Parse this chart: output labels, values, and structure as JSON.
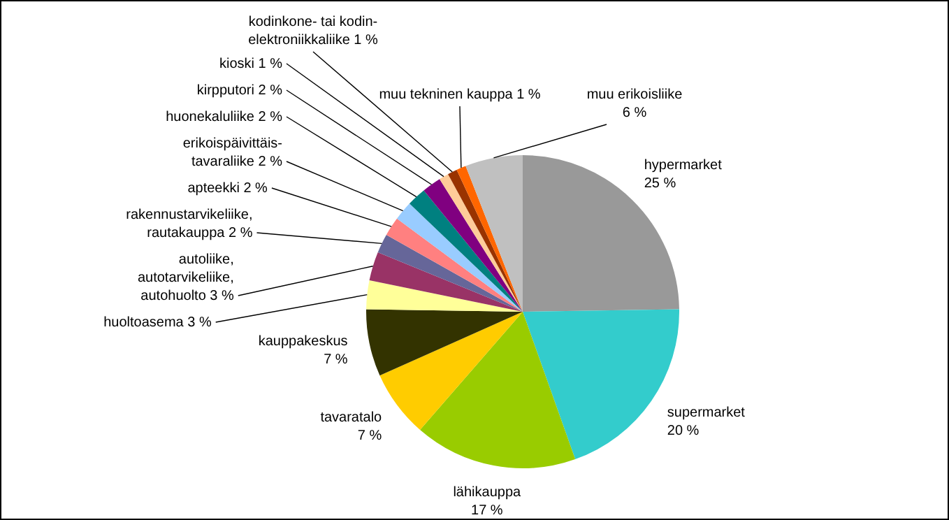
{
  "chart_data": {
    "type": "pie",
    "categories": [
      "hypermarket",
      "supermarket",
      "lähikauppa",
      "tavaratalo",
      "kauppakeskus",
      "huoltoasema",
      "autoliike,\nautotarvikeliike,\nautohuolto",
      "rakennustarvikeliike,\nrautakauppa",
      "apteekki",
      "erikoispäivittäis-\ntavaraliike",
      "huonekaluliike",
      "kirpputori",
      "kioski",
      "kodinkone- tai kodin-\nelektroniikkaliike",
      "muu tekninen kauppa",
      "muu erikoisliike"
    ],
    "values": [
      25,
      20,
      17,
      7,
      7,
      3,
      3,
      2,
      2,
      2,
      2,
      2,
      1,
      1,
      1,
      6
    ],
    "value_labels": [
      "25 %",
      "20 %",
      "17 %",
      "7 %",
      "7 %",
      "3 %",
      "3 %",
      "2 %",
      "2 %",
      "2 %",
      "2 %",
      "2 %",
      "1 %",
      "1 %",
      "1 %",
      "6 %"
    ],
    "colors": [
      "#999999",
      "#33cccc",
      "#99cc00",
      "#ffcc00",
      "#333300",
      "#ffff99",
      "#993366",
      "#666699",
      "#ff8080",
      "#99ccff",
      "#008080",
      "#800080",
      "#ffcc99",
      "#993300",
      "#ff6600",
      "#c0c0c0"
    ],
    "legend": false
  }
}
